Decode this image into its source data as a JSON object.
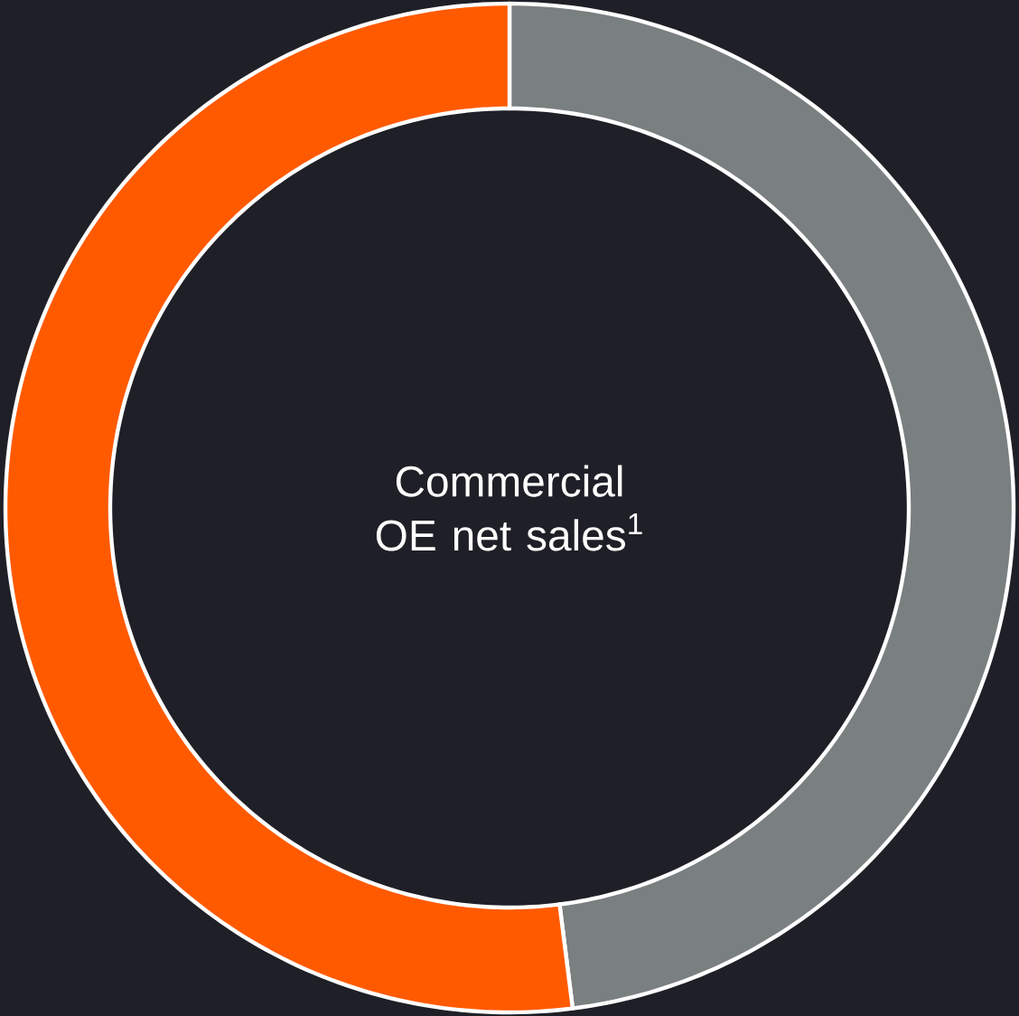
{
  "chart_data": {
    "type": "donut",
    "title": "Commercial OE net sales$^{1}$",
    "categories": [
      null,
      null
    ],
    "values": [
      48,
      52
    ],
    "colors": [
      "#7a7f80",
      "#ff5a00"
    ]
  }
}
